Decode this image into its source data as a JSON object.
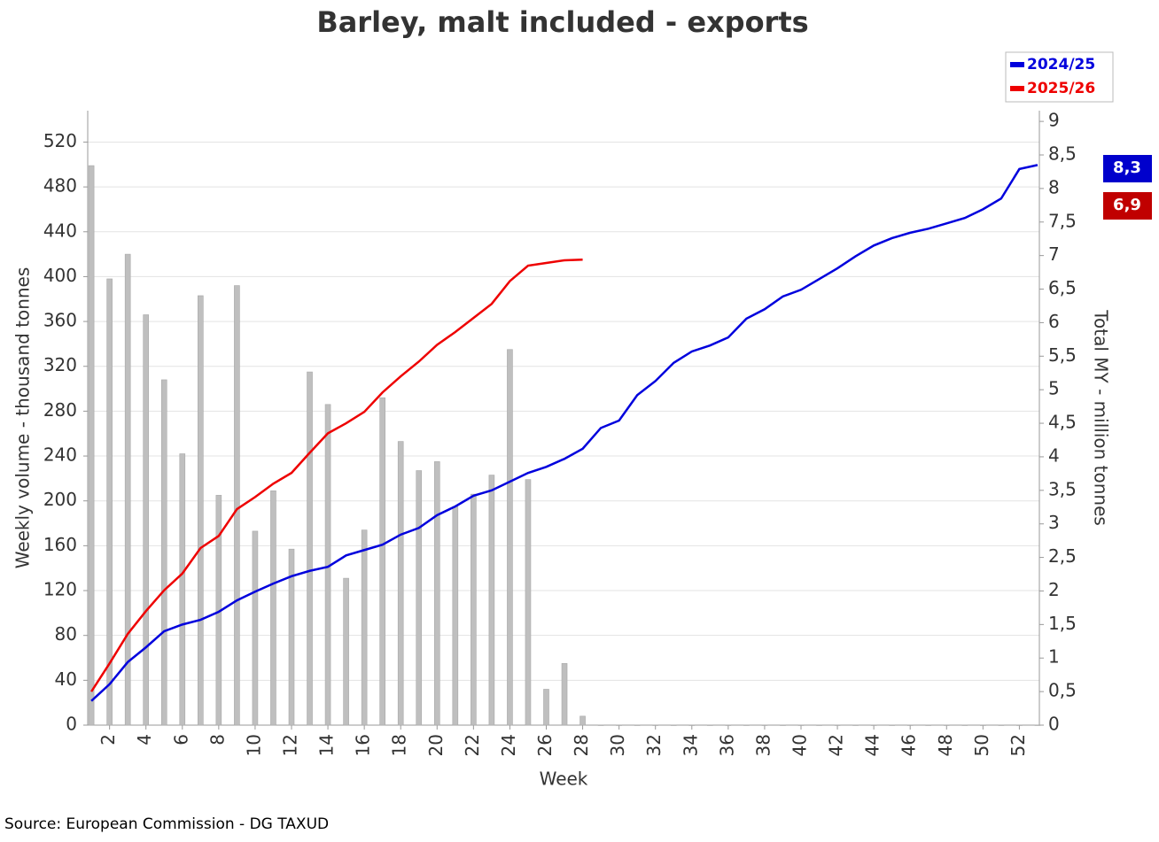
{
  "chart_data": {
    "type": "bar-line",
    "title": "Barley, malt included - exports",
    "source": "Source: European Commission - DG TAXUD",
    "xlabel": "Week",
    "ylabel": "Weekly volume - thousand tonnes",
    "y2label": "Total MY - million tonnes",
    "x": [
      1,
      2,
      3,
      4,
      5,
      6,
      7,
      8,
      9,
      10,
      11,
      12,
      13,
      14,
      15,
      16,
      17,
      18,
      19,
      20,
      21,
      22,
      23,
      24,
      25,
      26,
      27,
      28,
      29,
      30,
      31,
      32,
      33,
      34,
      35,
      36,
      37,
      38,
      39,
      40,
      41,
      42,
      43,
      44,
      45,
      46,
      47,
      48,
      49,
      50,
      51,
      52,
      53
    ],
    "xlim": [
      0.8,
      53.1
    ],
    "xticks": [
      2,
      4,
      6,
      8,
      10,
      12,
      14,
      16,
      18,
      20,
      22,
      24,
      26,
      28,
      30,
      32,
      34,
      36,
      38,
      40,
      42,
      44,
      46,
      48,
      50,
      52
    ],
    "ylim": [
      0,
      548
    ],
    "yticks": [
      0,
      40,
      80,
      120,
      160,
      200,
      240,
      280,
      320,
      360,
      400,
      440,
      480,
      520
    ],
    "y2lim": [
      0,
      9.16
    ],
    "y2ticks": [
      0,
      {
        "value": 0.5,
        "label": "0,5"
      },
      1,
      {
        "value": 1.5,
        "label": "1,5"
      },
      2,
      {
        "value": 2.5,
        "label": "2,5"
      },
      3,
      {
        "value": 3.5,
        "label": "3,5"
      },
      4,
      {
        "value": 4.5,
        "label": "4,5"
      },
      5,
      {
        "value": 5.5,
        "label": "5,5"
      },
      6,
      {
        "value": 6.5,
        "label": "6,5"
      },
      7,
      {
        "value": 7.5,
        "label": "7,5"
      },
      8,
      {
        "value": 8.5,
        "label": "8,5"
      },
      9
    ],
    "grid": true,
    "legend": "top-right",
    "bars": {
      "color": "#bfbfbf",
      "values": [
        499,
        398,
        420,
        366,
        308,
        242,
        383,
        205,
        392,
        173,
        209,
        157,
        315,
        286,
        131,
        174,
        292,
        253,
        227,
        235,
        195,
        206,
        223,
        335,
        219,
        32,
        55,
        8,
        0,
        0,
        0,
        0,
        0,
        0,
        0,
        0,
        0,
        0,
        0,
        0,
        0,
        0,
        0,
        0,
        0,
        0,
        0,
        0,
        0,
        0,
        0,
        0,
        0
      ]
    },
    "series": [
      {
        "name": "2024/25",
        "color": "#0000dd",
        "axis": "y2",
        "end_label": "8,3",
        "values": [
          0.36,
          0.61,
          0.94,
          1.16,
          1.4,
          1.5,
          1.57,
          1.69,
          1.86,
          1.99,
          2.11,
          2.22,
          2.3,
          2.36,
          2.53,
          2.61,
          2.69,
          2.84,
          2.94,
          3.13,
          3.26,
          3.42,
          3.5,
          3.63,
          3.76,
          3.85,
          3.97,
          4.12,
          4.43,
          4.54,
          4.92,
          5.13,
          5.4,
          5.57,
          5.66,
          5.78,
          6.06,
          6.2,
          6.39,
          6.49,
          6.65,
          6.81,
          6.99,
          7.15,
          7.26,
          7.34,
          7.4,
          7.48,
          7.56,
          7.69,
          7.85,
          8.29,
          8.35
        ]
      },
      {
        "name": "2025/26",
        "color": "#ee0000",
        "axis": "y2",
        "end_label": "6,9",
        "values": [
          0.5,
          0.92,
          1.36,
          1.7,
          2.01,
          2.26,
          2.64,
          2.82,
          3.22,
          3.4,
          3.6,
          3.76,
          4.06,
          4.35,
          4.5,
          4.67,
          4.96,
          5.2,
          5.42,
          5.67,
          5.86,
          6.07,
          6.28,
          6.62,
          6.85,
          6.89,
          6.93,
          6.94,
          null,
          null,
          null,
          null,
          null,
          null,
          null,
          null,
          null,
          null,
          null,
          null,
          null,
          null,
          null,
          null,
          null,
          null,
          null,
          null,
          null,
          null,
          null,
          null,
          null
        ]
      }
    ]
  }
}
